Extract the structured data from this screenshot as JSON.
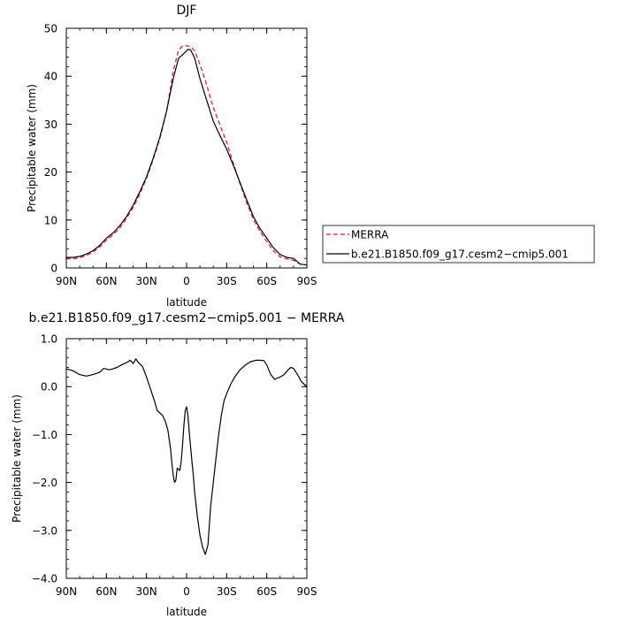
{
  "chart_data": [
    {
      "type": "line",
      "title": "DJF",
      "xlabel": "latitude",
      "ylabel": "Precipitable water  (mm)",
      "xlim": [
        90,
        -90
      ],
      "ylim": [
        0,
        50
      ],
      "xticks": [
        90,
        60,
        30,
        0,
        -30,
        -60,
        -90
      ],
      "xtick_labels": [
        "90N",
        "60N",
        "30N",
        "0",
        "30S",
        "60S",
        "90S"
      ],
      "yticks": [
        0,
        10,
        20,
        30,
        40,
        50
      ],
      "ytick_labels": [
        "0",
        "10",
        "20",
        "30",
        "40",
        "50"
      ],
      "grid": false,
      "legend": "outside-right",
      "series": [
        {
          "name": "MERRA",
          "color": "#e8141c",
          "dash": "dashed",
          "x": [
            90,
            85,
            80,
            75,
            70,
            65,
            60,
            55,
            50,
            45,
            40,
            35,
            30,
            25,
            20,
            15,
            10,
            6,
            3,
            1,
            -1,
            -3,
            -6,
            -10,
            -15,
            -20,
            -25,
            -30,
            -35,
            -40,
            -45,
            -50,
            -55,
            -60,
            -65,
            -70,
            -75,
            -80,
            -85,
            -90
          ],
          "y": [
            1.9,
            1.9,
            2.1,
            2.6,
            3.3,
            4.4,
            5.8,
            6.9,
            8.3,
            10.3,
            12.6,
            15.4,
            18.7,
            22.6,
            27.0,
            32.5,
            41.0,
            45.5,
            46.3,
            46.4,
            46.3,
            46.2,
            45.3,
            42.5,
            38.2,
            33.5,
            29.8,
            26.2,
            21.8,
            17.6,
            13.6,
            10.1,
            7.6,
            5.5,
            3.6,
            2.3,
            1.9,
            1.6,
            0.8,
            0.6
          ]
        },
        {
          "name": "b.e21.B1850.f09_g17.cesm2−cmip5.001",
          "color": "#000000",
          "dash": "solid",
          "x": [
            90,
            85,
            80,
            75,
            70,
            65,
            60,
            55,
            50,
            45,
            40,
            35,
            30,
            25,
            20,
            15,
            10,
            6,
            3,
            1,
            -1,
            -3,
            -6,
            -10,
            -15,
            -20,
            -25,
            -30,
            -35,
            -40,
            -45,
            -50,
            -55,
            -60,
            -65,
            -70,
            -75,
            -80,
            -85,
            -90
          ],
          "y": [
            2.2,
            2.2,
            2.4,
            2.9,
            3.6,
            4.7,
            6.2,
            7.3,
            8.8,
            10.7,
            13.1,
            15.9,
            19.0,
            22.9,
            27.3,
            32.7,
            39.5,
            43.7,
            44.5,
            45.0,
            45.6,
            45.5,
            43.8,
            39.5,
            35.0,
            30.6,
            27.6,
            24.8,
            21.4,
            17.8,
            14.2,
            10.7,
            8.2,
            6.2,
            4.2,
            2.8,
            2.2,
            2.0,
            0.8,
            0.6
          ]
        }
      ]
    },
    {
      "type": "line",
      "title": "b.e21.B1850.f09_g17.cesm2−cmip5.001  −  MERRA",
      "xlabel": "latitude",
      "ylabel": "Precipitable water  (mm)",
      "xlim": [
        90,
        -90
      ],
      "ylim": [
        -4.0,
        1.0
      ],
      "xticks": [
        90,
        60,
        30,
        0,
        -30,
        -60,
        -90
      ],
      "xtick_labels": [
        "90N",
        "60N",
        "30N",
        "0",
        "30S",
        "60S",
        "90S"
      ],
      "yticks": [
        -4.0,
        -3.0,
        -2.0,
        -1.0,
        0.0,
        1.0
      ],
      "ytick_labels": [
        "−4.0",
        "−3.0",
        "−2.0",
        "−1.0",
        "0.0",
        "1.0"
      ],
      "grid": false,
      "series": [
        {
          "color": "#000000",
          "dash": "solid",
          "x": [
            90,
            85,
            80,
            75,
            70,
            65,
            62,
            58,
            55,
            52,
            49,
            45,
            42,
            40,
            38,
            36,
            33,
            30,
            27,
            24,
            22,
            20,
            18,
            16,
            14,
            12,
            11,
            10,
            9,
            8,
            7,
            5,
            4,
            3,
            2,
            1,
            0,
            -1,
            -2,
            -3,
            -4,
            -5,
            -6,
            -8,
            -10,
            -12,
            -14,
            -16,
            -17,
            -18,
            -20,
            -22,
            -24,
            -26,
            -28,
            -30,
            -33,
            -36,
            -40,
            -44,
            -48,
            -52,
            -55,
            -58,
            -60,
            -63,
            -66,
            -68,
            -70,
            -73,
            -76,
            -78,
            -80,
            -83,
            -86,
            -88,
            -90
          ],
          "y": [
            0.37,
            0.33,
            0.25,
            0.22,
            0.25,
            0.3,
            0.38,
            0.35,
            0.37,
            0.4,
            0.45,
            0.5,
            0.55,
            0.48,
            0.58,
            0.5,
            0.42,
            0.2,
            -0.05,
            -0.3,
            -0.5,
            -0.55,
            -0.6,
            -0.72,
            -0.9,
            -1.3,
            -1.6,
            -1.85,
            -2.0,
            -1.95,
            -1.7,
            -1.75,
            -1.55,
            -1.2,
            -0.8,
            -0.5,
            -0.42,
            -0.6,
            -0.95,
            -1.25,
            -1.55,
            -1.85,
            -2.2,
            -2.7,
            -3.1,
            -3.35,
            -3.5,
            -3.3,
            -2.9,
            -2.5,
            -2.0,
            -1.5,
            -1.0,
            -0.6,
            -0.3,
            -0.15,
            0.05,
            0.2,
            0.35,
            0.45,
            0.52,
            0.55,
            0.55,
            0.54,
            0.45,
            0.25,
            0.15,
            0.18,
            0.2,
            0.25,
            0.35,
            0.4,
            0.38,
            0.25,
            0.1,
            0.05,
            0.0
          ]
        }
      ]
    }
  ]
}
